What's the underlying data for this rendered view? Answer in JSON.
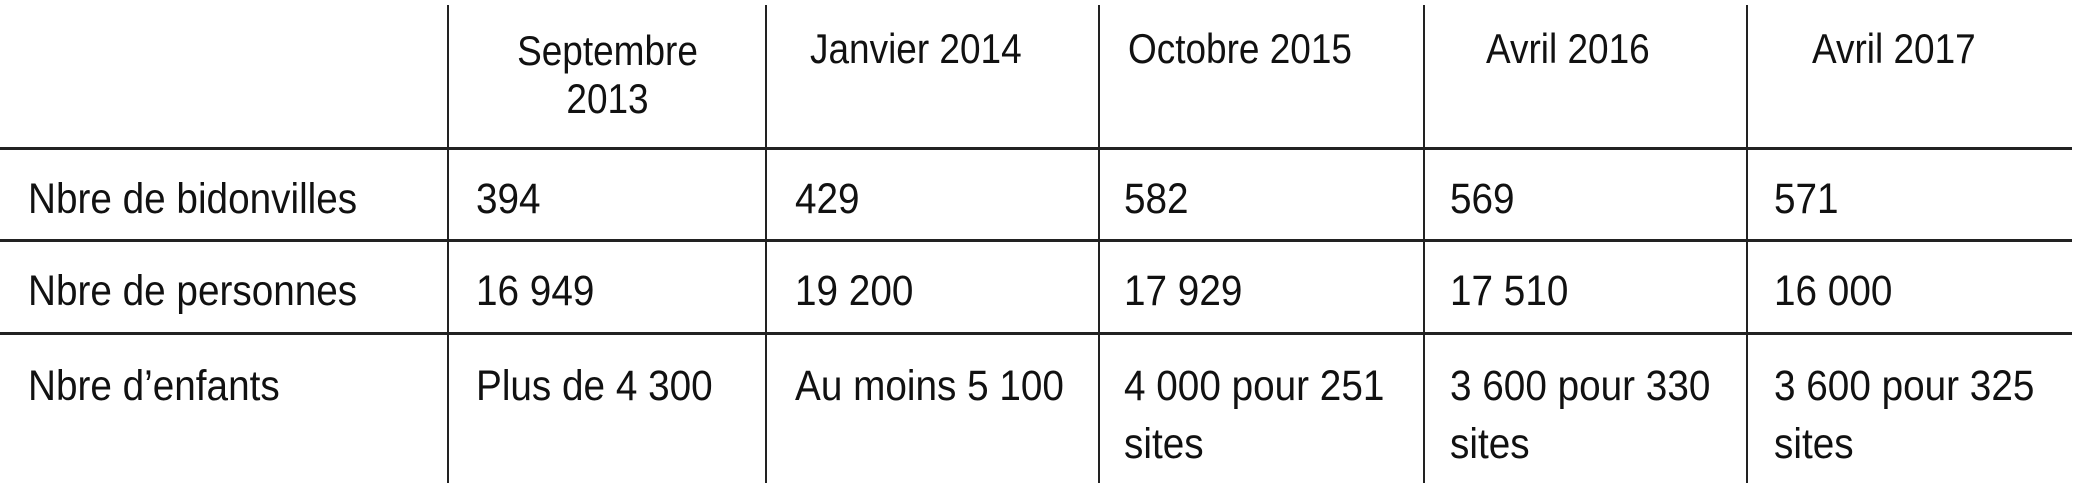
{
  "table": {
    "columns": [
      "Septembre 2013",
      "Janvier 2014",
      "Octobre 2015",
      "Avril 2016",
      "Avril 2017"
    ],
    "header_lines": {
      "col0_line1": "Septembre",
      "col0_line2": "2013"
    },
    "rows": [
      {
        "label": "Nbre de bidonvilles",
        "cells": [
          "394",
          "429",
          "582",
          "569",
          "571"
        ]
      },
      {
        "label": "Nbre de personnes",
        "cells": [
          "16 949",
          "19 200",
          "17 929",
          "17 510",
          "16 000"
        ]
      },
      {
        "label": "Nbre d’enfants",
        "cells": [
          "Plus de 4 300",
          "Au moins 5 100",
          "4 000 pour 251 sites",
          "3 600 pour 330 sites",
          "3 600 pour 325 sites"
        ]
      }
    ]
  }
}
